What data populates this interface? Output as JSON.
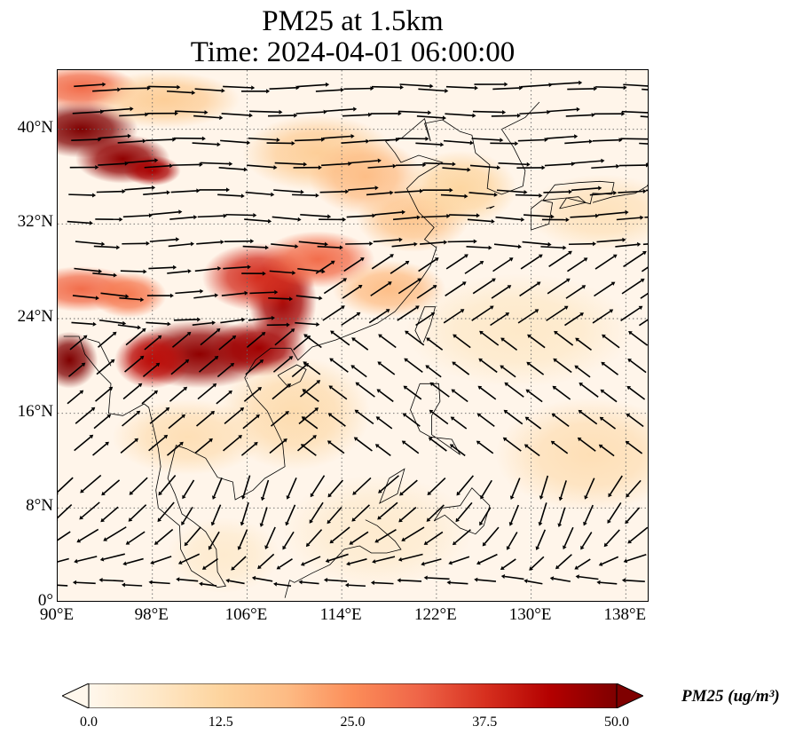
{
  "title": {
    "line1": "PM25 at 1.5km",
    "line2": "Time: 2024-04-01 06:00:00"
  },
  "map": {
    "extent": {
      "lon": [
        90,
        140
      ],
      "lat": [
        0,
        45
      ]
    },
    "lat_ticks": [
      {
        "value": 0,
        "label": "0°"
      },
      {
        "value": 8,
        "label": "8°N"
      },
      {
        "value": 16,
        "label": "16°N"
      },
      {
        "value": 24,
        "label": "24°N"
      },
      {
        "value": 32,
        "label": "32°N"
      },
      {
        "value": 40,
        "label": "40°N"
      }
    ],
    "lon_ticks": [
      {
        "value": 90,
        "label": "90°E"
      },
      {
        "value": 98,
        "label": "98°E"
      },
      {
        "value": 106,
        "label": "106°E"
      },
      {
        "value": 114,
        "label": "114°E"
      },
      {
        "value": 122,
        "label": "122°E"
      },
      {
        "value": 130,
        "label": "130°E"
      },
      {
        "value": 138,
        "label": "138°E"
      }
    ],
    "gridlines": "dotted",
    "hotspots": [
      {
        "lon": 92,
        "lat": 40,
        "rlon": 3,
        "rlat": 1.5,
        "value": 50
      },
      {
        "lon": 95.5,
        "lat": 37.5,
        "rlon": 2.5,
        "rlat": 1.3,
        "value": 48
      },
      {
        "lon": 98,
        "lat": 36.5,
        "rlon": 1.5,
        "rlat": 0.8,
        "value": 45
      },
      {
        "lon": 91,
        "lat": 20.5,
        "rlon": 1.5,
        "rlat": 1.5,
        "value": 50
      },
      {
        "lon": 102,
        "lat": 21,
        "rlon": 4,
        "rlat": 1.8,
        "value": 48
      },
      {
        "lon": 98,
        "lat": 20.5,
        "rlon": 2,
        "rlat": 1.5,
        "value": 42
      },
      {
        "lon": 107,
        "lat": 21.5,
        "rlon": 2.5,
        "rlat": 1.5,
        "value": 46
      },
      {
        "lon": 109,
        "lat": 25.5,
        "rlon": 1.8,
        "rlat": 2.5,
        "value": 46
      },
      {
        "lon": 107,
        "lat": 27.5,
        "rlon": 3,
        "rlat": 1.8,
        "value": 38
      },
      {
        "lon": 112,
        "lat": 29,
        "rlon": 3,
        "rlat": 1.5,
        "value": 30
      },
      {
        "lon": 118,
        "lat": 26.5,
        "rlon": 3,
        "rlat": 1.5,
        "value": 18
      },
      {
        "lon": 92,
        "lat": 26.5,
        "rlon": 3,
        "rlat": 1.2,
        "value": 30
      },
      {
        "lon": 96,
        "lat": 26,
        "rlon": 2,
        "rlat": 1.2,
        "value": 28
      },
      {
        "lon": 92,
        "lat": 43.5,
        "rlon": 3,
        "rlat": 1.2,
        "value": 30
      },
      {
        "lon": 99,
        "lat": 42.5,
        "rlon": 4,
        "rlat": 1.5,
        "value": 14
      },
      {
        "lon": 112,
        "lat": 38,
        "rlon": 4,
        "rlat": 2,
        "value": 14
      },
      {
        "lon": 116,
        "lat": 36,
        "rlon": 3,
        "rlat": 2,
        "value": 18
      },
      {
        "lon": 120,
        "lat": 32.5,
        "rlon": 3,
        "rlat": 1.8,
        "value": 16
      },
      {
        "lon": 124,
        "lat": 35,
        "rlon": 3,
        "rlat": 2,
        "value": 12
      },
      {
        "lon": 110,
        "lat": 16,
        "rlon": 4,
        "rlat": 3,
        "value": 10
      },
      {
        "lon": 101,
        "lat": 14,
        "rlon": 4,
        "rlat": 2,
        "value": 9
      },
      {
        "lon": 135,
        "lat": 12.5,
        "rlon": 5,
        "rlat": 3,
        "value": 9
      },
      {
        "lon": 129,
        "lat": 23,
        "rlon": 6,
        "rlat": 3,
        "value": 6
      },
      {
        "lon": 117,
        "lat": 6,
        "rlon": 5,
        "rlat": 3,
        "value": 5
      },
      {
        "lon": 104,
        "lat": 4,
        "rlon": 3,
        "rlat": 2,
        "value": 5
      },
      {
        "lon": 136,
        "lat": 33,
        "rlon": 4,
        "rlat": 2,
        "value": 8
      }
    ],
    "wind_field": "vectors",
    "coastlines": true
  },
  "colorbar": {
    "min": 0.0,
    "max": 50.0,
    "ticks": [
      "0.0",
      "12.5",
      "25.0",
      "37.5",
      "50.0"
    ],
    "label": "PM25 (ug/m$^{3}$)",
    "label_display": "PM25 (ug/m³)",
    "extend": "both",
    "colormap": "OrRd",
    "colors": [
      "#fff7ec",
      "#fee8c8",
      "#fdd49e",
      "#fdbb84",
      "#fc8d59",
      "#ef6548",
      "#d7301f",
      "#b30000",
      "#7f0000"
    ]
  }
}
